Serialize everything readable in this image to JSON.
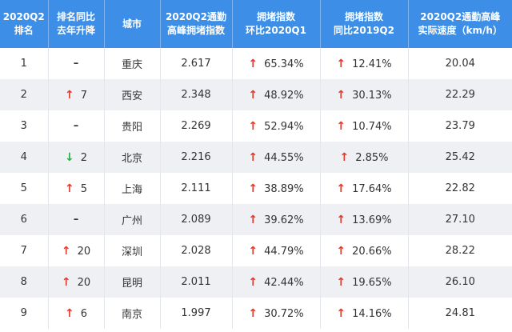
{
  "headers": [
    [
      "2020Q2",
      "排名"
    ],
    [
      "排名同比",
      "去年升降"
    ],
    [
      "城市"
    ],
    [
      "2020Q2通勤",
      "高峰拥堵指数"
    ],
    [
      "拥堵指数",
      "环比2020Q1"
    ],
    [
      "拥堵指数",
      "同比2019Q2"
    ],
    [
      "2020Q2通勤高峰",
      "实际速度（km/h）"
    ]
  ],
  "colors": {
    "header_bg": "#3c8ee6",
    "up": "#e03b2e",
    "down": "#2eaa45",
    "row_alt": "#eef0f4"
  },
  "rows": [
    {
      "rank": "1",
      "change_dir": "none",
      "change_text": "–",
      "city": "重庆",
      "index": "2.617",
      "qoq": "65.34%",
      "yoy": "12.41%",
      "speed": "20.04"
    },
    {
      "rank": "2",
      "change_dir": "up",
      "change_text": "7",
      "city": "西安",
      "index": "2.348",
      "qoq": "48.92%",
      "yoy": "30.13%",
      "speed": "22.29"
    },
    {
      "rank": "3",
      "change_dir": "none",
      "change_text": "–",
      "city": "贵阳",
      "index": "2.269",
      "qoq": "52.94%",
      "yoy": "10.74%",
      "speed": "23.79"
    },
    {
      "rank": "4",
      "change_dir": "down",
      "change_text": "2",
      "city": "北京",
      "index": "2.216",
      "qoq": "44.55%",
      "yoy": "2.85%",
      "speed": "25.42"
    },
    {
      "rank": "5",
      "change_dir": "up",
      "change_text": "5",
      "city": "上海",
      "index": "2.111",
      "qoq": "38.89%",
      "yoy": "17.64%",
      "speed": "22.82"
    },
    {
      "rank": "6",
      "change_dir": "none",
      "change_text": "–",
      "city": "广州",
      "index": "2.089",
      "qoq": "39.62%",
      "yoy": "13.69%",
      "speed": "27.10"
    },
    {
      "rank": "7",
      "change_dir": "up",
      "change_text": "20",
      "city": "深圳",
      "index": "2.028",
      "qoq": "44.79%",
      "yoy": "20.66%",
      "speed": "28.22"
    },
    {
      "rank": "8",
      "change_dir": "up",
      "change_text": "20",
      "city": "昆明",
      "index": "2.011",
      "qoq": "42.44%",
      "yoy": "19.65%",
      "speed": "26.10"
    },
    {
      "rank": "9",
      "change_dir": "up",
      "change_text": "6",
      "city": "南京",
      "index": "1.997",
      "qoq": "30.72%",
      "yoy": "14.16%",
      "speed": "24.81"
    }
  ]
}
